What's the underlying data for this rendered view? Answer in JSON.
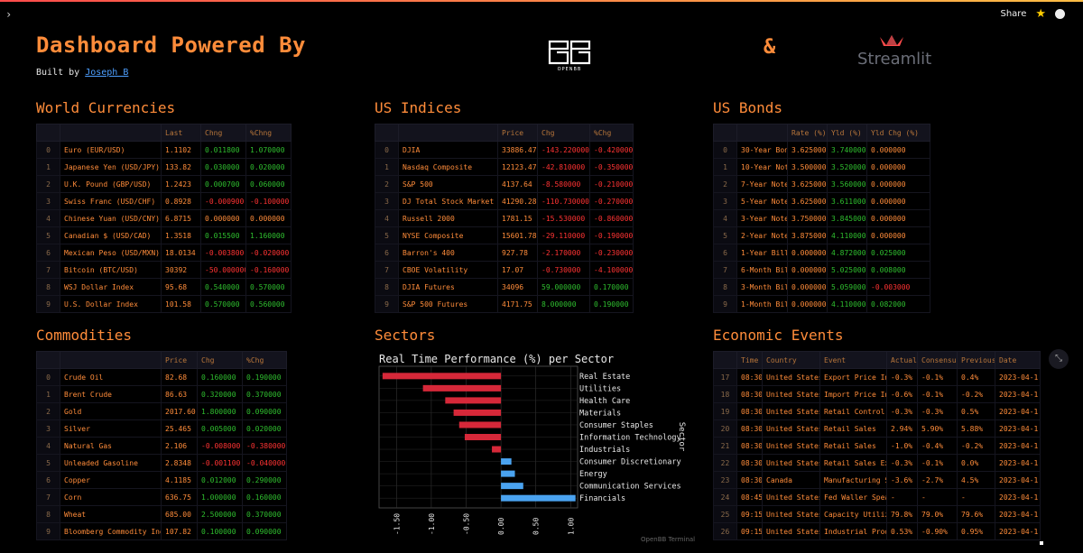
{
  "topbar": {
    "share": "Share"
  },
  "header": {
    "title": "Dashboard Powered By",
    "built_by_prefix": "Built by",
    "author": "Joseph B",
    "amp": "&",
    "openbb_label": "OPENBB",
    "streamlit_label": "Streamlit"
  },
  "currencies": {
    "title": "World Currencies",
    "columns": [
      "",
      "",
      "Last",
      "Chng",
      "%Chng"
    ],
    "rows": [
      [
        "0",
        "Euro (EUR/USD)",
        "1.1102",
        "0.011800",
        "1.070000"
      ],
      [
        "1",
        "Japanese Yen (USD/JPY)",
        "133.82",
        "0.030000",
        "0.020000"
      ],
      [
        "2",
        "U.K. Pound (GBP/USD)",
        "1.2423",
        "0.000700",
        "0.060000"
      ],
      [
        "3",
        "Swiss Franc (USD/CHF)",
        "0.8928",
        "-0.000900",
        "-0.100000"
      ],
      [
        "4",
        "Chinese Yuan (USD/CNY)",
        "6.8715",
        "0.000000",
        "0.000000"
      ],
      [
        "5",
        "Canadian $ (USD/CAD)",
        "1.3518",
        "0.015500",
        "1.160000"
      ],
      [
        "6",
        "Mexican Peso (USD/MXN)",
        "18.0134",
        "-0.003800",
        "-0.020000"
      ],
      [
        "7",
        "Bitcoin (BTC/USD)",
        "30392",
        "-50.000000",
        "-0.160000"
      ],
      [
        "8",
        "WSJ Dollar Index",
        "95.68",
        "0.540000",
        "0.570000"
      ],
      [
        "9",
        "U.S. Dollar Index",
        "101.58",
        "0.570000",
        "0.560000"
      ]
    ]
  },
  "indices": {
    "title": "US Indices",
    "columns": [
      "",
      "",
      "Price",
      "Chg",
      "%Chg"
    ],
    "rows": [
      [
        "0",
        "DJIA",
        "33886.47",
        "-143.220000",
        "-0.420000"
      ],
      [
        "1",
        "Nasdaq Composite",
        "12123.47",
        "-42.810000",
        "-0.350000"
      ],
      [
        "2",
        "S&P 500",
        "4137.64",
        "-8.580000",
        "-0.210000"
      ],
      [
        "3",
        "DJ Total Stock Market",
        "41290.28",
        "-110.730000",
        "-0.270000"
      ],
      [
        "4",
        "Russell 2000",
        "1781.15",
        "-15.530000",
        "-0.860000"
      ],
      [
        "5",
        "NYSE Composite",
        "15601.78",
        "-29.110000",
        "-0.190000"
      ],
      [
        "6",
        "Barron's 400",
        "927.78",
        "-2.170000",
        "-0.230000"
      ],
      [
        "7",
        "CBOE Volatility",
        "17.07",
        "-0.730000",
        "-4.100000"
      ],
      [
        "8",
        "DJIA Futures",
        "34096",
        "59.000000",
        "0.170000"
      ],
      [
        "9",
        "S&P 500 Futures",
        "4171.75",
        "8.000000",
        "0.190000"
      ]
    ]
  },
  "bonds": {
    "title": "US Bonds",
    "columns": [
      "",
      "",
      "Rate (%)",
      "Yld (%)",
      "Yld Chg (%)"
    ],
    "rows": [
      [
        "0",
        "30-Year Bond",
        "3.625000",
        "3.740000",
        "0.000000"
      ],
      [
        "1",
        "10-Year Note",
        "3.500000",
        "3.520000",
        "0.000000"
      ],
      [
        "2",
        "7-Year Note",
        "3.625000",
        "3.560000",
        "0.000000"
      ],
      [
        "3",
        "5-Year Note",
        "3.625000",
        "3.611000",
        "0.000000"
      ],
      [
        "4",
        "3-Year Note",
        "3.750000",
        "3.845000",
        "0.000000"
      ],
      [
        "5",
        "2-Year Note",
        "3.875000",
        "4.110000",
        "0.000000"
      ],
      [
        "6",
        "1-Year Bill",
        "0.000000",
        "4.872000",
        "0.025000"
      ],
      [
        "7",
        "6-Month Bill",
        "0.000000",
        "5.025000",
        "0.008000"
      ],
      [
        "8",
        "3-Month Bill",
        "0.000000",
        "5.059000",
        "-0.003000"
      ],
      [
        "9",
        "1-Month Bill",
        "0.000000",
        "4.110000",
        "0.082000"
      ]
    ]
  },
  "commodities": {
    "title": "Commodities",
    "columns": [
      "",
      "",
      "Price",
      "Chg",
      "%Chg"
    ],
    "rows": [
      [
        "0",
        "Crude Oil",
        "82.68",
        "0.160000",
        "0.190000"
      ],
      [
        "1",
        "Brent Crude",
        "86.63",
        "0.320000",
        "0.370000"
      ],
      [
        "2",
        "Gold",
        "2017.60",
        "1.800000",
        "0.090000"
      ],
      [
        "3",
        "Silver",
        "25.465",
        "0.005000",
        "0.020000"
      ],
      [
        "4",
        "Natural Gas",
        "2.106",
        "-0.008000",
        "-0.380000"
      ],
      [
        "5",
        "Unleaded Gasoline",
        "2.8348",
        "-0.001100",
        "-0.040000"
      ],
      [
        "6",
        "Copper",
        "4.1185",
        "0.012000",
        "0.290000"
      ],
      [
        "7",
        "Corn",
        "636.75",
        "1.000000",
        "0.160000"
      ],
      [
        "8",
        "Wheat",
        "685.00",
        "2.500000",
        "0.370000"
      ],
      [
        "9",
        "Bloomberg Commodity Ind",
        "107.82",
        "0.100000",
        "0.090000"
      ]
    ]
  },
  "sectors": {
    "title": "Sectors",
    "footer": "OpenBB Terminal"
  },
  "events": {
    "title": "Economic Events",
    "columns": [
      "",
      "Time",
      "Country",
      "Event",
      "Actual",
      "Consensus",
      "Previous",
      "Date"
    ],
    "rows": [
      [
        "17",
        "08:30",
        "United States",
        "Export Price Index",
        "-0.3%",
        "-0.1%",
        "0.4%",
        "2023-04-1"
      ],
      [
        "18",
        "08:30",
        "United States",
        "Import Price Index",
        "-0.6%",
        "-0.1%",
        "-0.2%",
        "2023-04-1"
      ],
      [
        "19",
        "08:30",
        "United States",
        "Retail Control",
        "-0.3%",
        "-0.3%",
        "0.5%",
        "2023-04-1"
      ],
      [
        "20",
        "08:30",
        "United States",
        "Retail Sales",
        "2.94%",
        "5.90%",
        "5.88%",
        "2023-04-1"
      ],
      [
        "21",
        "08:30",
        "United States",
        "Retail Sales",
        "-1.0%",
        "-0.4%",
        "-0.2%",
        "2023-04-1"
      ],
      [
        "22",
        "08:30",
        "United States",
        "Retail Sales Ex",
        "-0.3%",
        "-0.1%",
        "0.0%",
        "2023-04-1"
      ],
      [
        "23",
        "08:30",
        "Canada",
        "Manufacturing Sales",
        "-3.6%",
        "-2.7%",
        "4.5%",
        "2023-04-1"
      ],
      [
        "24",
        "08:45",
        "United States",
        "Fed Waller Speaks",
        "-",
        "-",
        "-",
        "2023-04-1"
      ],
      [
        "25",
        "09:15",
        "United States",
        "Capacity Utilization",
        "79.8%",
        "79.0%",
        "79.6%",
        "2023-04-1"
      ],
      [
        "26",
        "09:15",
        "United States",
        "Industrial Production",
        "0.53%",
        "-0.90%",
        "0.95%",
        "2023-04-1"
      ]
    ]
  },
  "chart_data": {
    "type": "bar",
    "orientation": "horizontal",
    "title": "Real Time Performance (%) per Sector",
    "xlabel": "",
    "ylabel": "Sector",
    "xlim": [
      -1.75,
      1.1
    ],
    "xticks": [
      "-1.50",
      "-1.00",
      "-0.50",
      "0.00",
      "0.50",
      "1.00"
    ],
    "xtick_values": [
      -1.5,
      -1.0,
      -0.5,
      0.0,
      0.5,
      1.0
    ],
    "categories": [
      "Real Estate",
      "Utilities",
      "Health Care",
      "Materials",
      "Consumer Staples",
      "Information Technology",
      "Industrials",
      "Consumer Discretionary",
      "Energy",
      "Communication Services",
      "Financials"
    ],
    "values": [
      -1.7,
      -1.12,
      -0.8,
      -0.68,
      -0.6,
      -0.52,
      -0.13,
      0.15,
      0.2,
      0.32,
      1.07
    ],
    "colors": {
      "negative": "#d62839",
      "positive": "#4aa3f0"
    }
  }
}
